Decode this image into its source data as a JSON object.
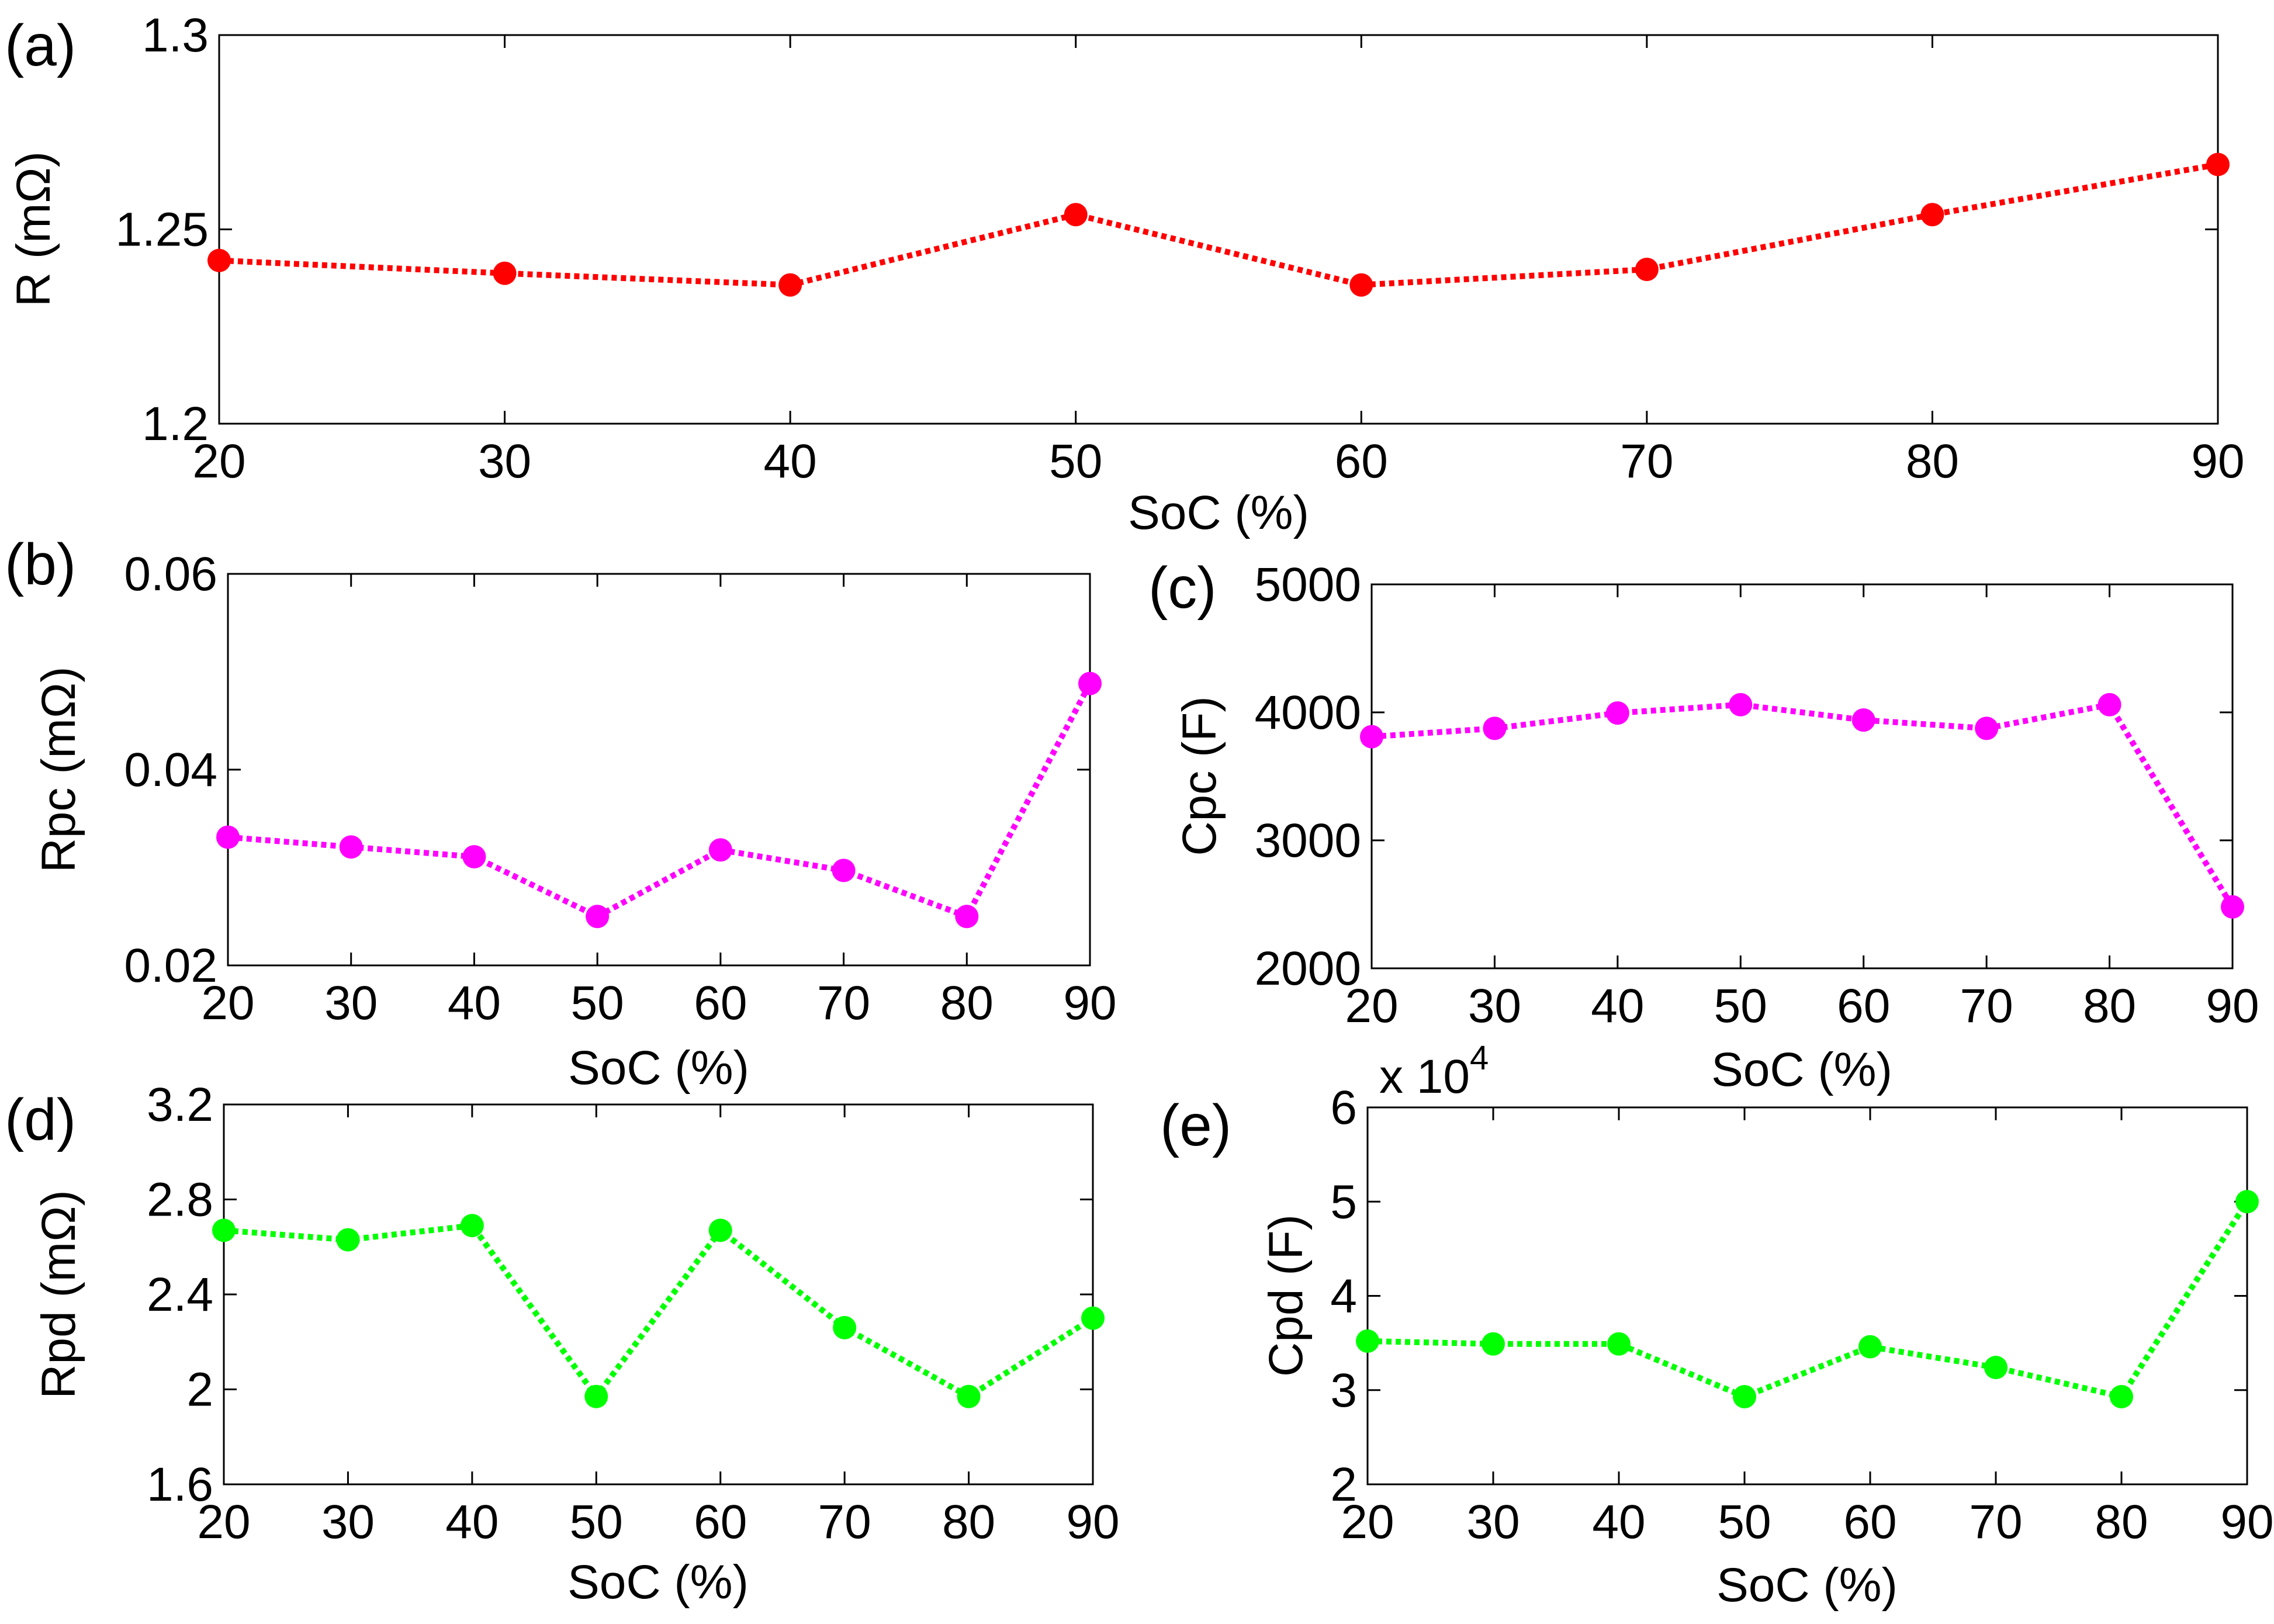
{
  "chart_data": [
    {
      "type": "line",
      "panel_label": "(a)",
      "xlabel": "SoC (%)",
      "ylabel": "R (mΩ)",
      "x": [
        20,
        30,
        40,
        50,
        60,
        70,
        80,
        90
      ],
      "xlim": [
        20,
        90
      ],
      "xticks": [
        20,
        30,
        40,
        50,
        60,
        70,
        80,
        90
      ],
      "xtick_labels": [
        "20",
        "30",
        "40",
        "50",
        "60",
        "70",
        "80",
        "90"
      ],
      "ylim": [
        1.2,
        1.3
      ],
      "yticks": [
        1.2,
        1.25,
        1.3
      ],
      "ytick_labels": [
        "1.2",
        "1.25",
        "1.3"
      ],
      "series": [
        {
          "name": "R",
          "color": "#ff0000",
          "line_style": "dotted",
          "marker": "circle",
          "values": [
            1.242,
            1.2387,
            1.2357,
            1.2538,
            1.2357,
            1.2397,
            1.2538,
            1.2667
          ]
        }
      ]
    },
    {
      "type": "line",
      "panel_label": "(b)",
      "xlabel": "SoC (%)",
      "ylabel": "Rpc (mΩ)",
      "x": [
        20,
        30,
        40,
        50,
        60,
        70,
        80,
        90
      ],
      "xlim": [
        20,
        90
      ],
      "xticks": [
        20,
        30,
        40,
        50,
        60,
        70,
        80,
        90
      ],
      "xtick_labels": [
        "20",
        "30",
        "40",
        "50",
        "60",
        "70",
        "80",
        "90"
      ],
      "ylim": [
        0.02,
        0.06
      ],
      "yticks": [
        0.02,
        0.04,
        0.06
      ],
      "ytick_labels": [
        "0.02",
        "0.04",
        "0.06"
      ],
      "series": [
        {
          "name": "Rpc",
          "color": "#ff00ff",
          "line_style": "dotted",
          "marker": "circle",
          "values": [
            0.0331,
            0.0321,
            0.0311,
            0.025,
            0.0318,
            0.0297,
            0.025,
            0.0488
          ]
        }
      ]
    },
    {
      "type": "line",
      "panel_label": "(c)",
      "xlabel": "SoC (%)",
      "ylabel": "Cpc (F)",
      "x": [
        20,
        30,
        40,
        50,
        60,
        70,
        80,
        90
      ],
      "xlim": [
        20,
        90
      ],
      "xticks": [
        20,
        30,
        40,
        50,
        60,
        70,
        80,
        90
      ],
      "xtick_labels": [
        "20",
        "30",
        "40",
        "50",
        "60",
        "70",
        "80",
        "90"
      ],
      "ylim": [
        2000,
        5000
      ],
      "yticks": [
        2000,
        3000,
        4000,
        5000
      ],
      "ytick_labels": [
        "2000",
        "3000",
        "4000",
        "5000"
      ],
      "series": [
        {
          "name": "Cpc",
          "color": "#ff00ff",
          "line_style": "dotted",
          "marker": "circle",
          "values": [
            3810,
            3875,
            3995,
            4060,
            3940,
            3875,
            4060,
            2480
          ]
        }
      ]
    },
    {
      "type": "line",
      "panel_label": "(d)",
      "xlabel": "SoC (%)",
      "ylabel": "Rpd (mΩ)",
      "x": [
        20,
        30,
        40,
        50,
        60,
        70,
        80,
        90
      ],
      "xlim": [
        20,
        90
      ],
      "xticks": [
        20,
        30,
        40,
        50,
        60,
        70,
        80,
        90
      ],
      "xtick_labels": [
        "20",
        "30",
        "40",
        "50",
        "60",
        "70",
        "80",
        "90"
      ],
      "ylim": [
        1.6,
        3.2
      ],
      "yticks": [
        1.6,
        2.0,
        2.4,
        2.8,
        3.2
      ],
      "ytick_labels": [
        "1.6",
        "2",
        "2.4",
        "2.8",
        "3.2"
      ],
      "series": [
        {
          "name": "Rpd",
          "color": "#00ff00",
          "line_style": "dotted",
          "marker": "circle",
          "values": [
            2.67,
            2.63,
            2.69,
            1.97,
            2.67,
            2.26,
            1.97,
            2.3
          ]
        }
      ]
    },
    {
      "type": "line",
      "panel_label": "(e)",
      "xlabel": "SoC (%)",
      "ylabel": "Cpd (F)",
      "y_multiplier": "x 10",
      "y_multiplier_exponent": "4",
      "x": [
        20,
        30,
        40,
        50,
        60,
        70,
        80,
        90
      ],
      "xlim": [
        20,
        90
      ],
      "xticks": [
        20,
        30,
        40,
        50,
        60,
        70,
        80,
        90
      ],
      "xtick_labels": [
        "20",
        "30",
        "40",
        "50",
        "60",
        "70",
        "80",
        "90"
      ],
      "ylim": [
        2,
        6
      ],
      "yticks": [
        2,
        3,
        4,
        5,
        6
      ],
      "ytick_labels": [
        "2",
        "3",
        "4",
        "5",
        "6"
      ],
      "series": [
        {
          "name": "Cpd",
          "color": "#00ff00",
          "line_style": "dotted",
          "marker": "circle",
          "values": [
            3.52,
            3.49,
            3.49,
            2.93,
            3.46,
            3.24,
            2.93,
            5.0
          ]
        }
      ]
    }
  ]
}
